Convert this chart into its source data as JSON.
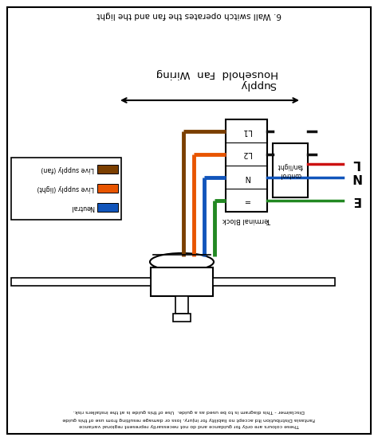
{
  "title_top": "6. Wall switch operates the fan and the light",
  "title_main": "Household  Fan  Wiring",
  "title_supply": "Supply",
  "terminal_block_label": "Terminal Block",
  "control_label": "control\nfan/light",
  "labels_right": [
    "L",
    "N",
    "E"
  ],
  "legend_items": [
    {
      "label": "Live supply (fan)",
      "color": "#7B3F00"
    },
    {
      "label": "Live supply (light)",
      "color": "#E85500"
    },
    {
      "label": "Neutral",
      "color": "#1155BB"
    }
  ],
  "terminal_labels": [
    "L1",
    "L2",
    "N",
    "="
  ],
  "wire_brown": "#7B3F00",
  "wire_orange": "#E85500",
  "wire_blue": "#1155BB",
  "wire_green": "#228822",
  "wire_black": "#111111",
  "wire_red": "#CC1111",
  "disclaimer1": "Disclaimer - This diagram is to be used as a guide.  Use of this guide is at the installers risk.",
  "disclaimer2": "Fantasia Distribution ltd accept no liability for injury, loss or damage resulting from use of this guide",
  "disclaimer3": "These colours are only for guidance and do not necessarily represent regional variance",
  "bg": "#FFFFFF",
  "border": "#000000"
}
